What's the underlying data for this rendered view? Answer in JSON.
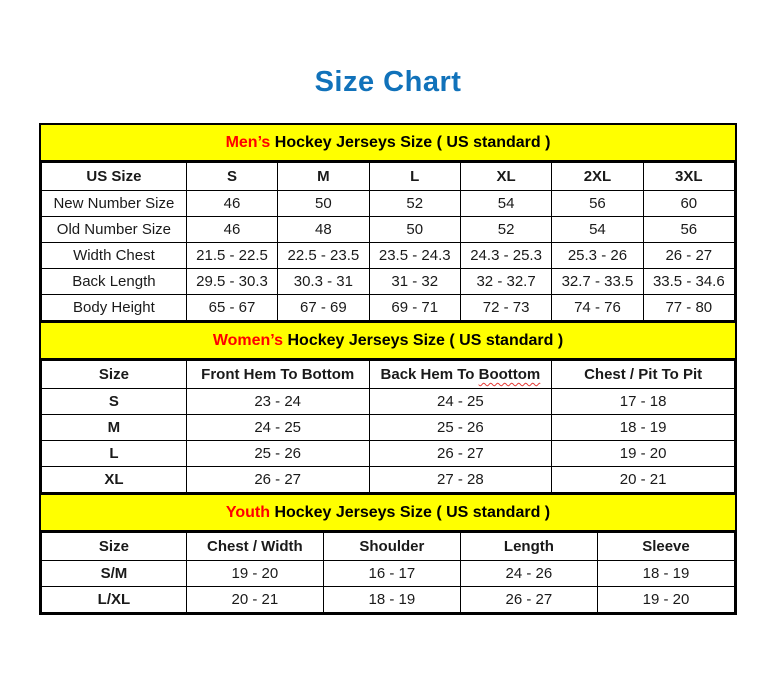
{
  "page_title": "Size Chart",
  "colors": {
    "title_blue": "#1172ba",
    "band_yellow": "#ffff00",
    "highlight_red": "#ff0000",
    "border_black": "#000000"
  },
  "chart_data": [
    {
      "type": "table",
      "id": "mens",
      "title_highlight": "Men’s",
      "title_rest": " Hockey Jerseys Size ( US standard )",
      "columns": [
        "US Size",
        "S",
        "M",
        "L",
        "XL",
        "2XL",
        "3XL"
      ],
      "rows": [
        [
          "New Number Size",
          "46",
          "50",
          "52",
          "54",
          "56",
          "60"
        ],
        [
          "Old Number Size",
          "46",
          "48",
          "50",
          "52",
          "54",
          "56"
        ],
        [
          "Width Chest",
          "21.5 - 22.5",
          "22.5 - 23.5",
          "23.5 - 24.3",
          "24.3 - 25.3",
          "25.3 - 26",
          "26 - 27"
        ],
        [
          "Back Length",
          "29.5 - 30.3",
          "30.3 - 31",
          "31 - 32",
          "32 - 32.7",
          "32.7 - 33.5",
          "33.5 - 34.6"
        ],
        [
          "Body Height",
          "65 - 67",
          "67 - 69",
          "69 - 71",
          "72 - 73",
          "74 - 76",
          "77 - 80"
        ]
      ],
      "row_label_bold": false
    },
    {
      "type": "table",
      "id": "womens",
      "title_highlight": "Women’s",
      "title_rest": " Hockey Jerseys Size ( US standard )",
      "columns": [
        "Size",
        "Front Hem To Bottom",
        "Back Hem To Boottom",
        "Chest / Pit To Pit"
      ],
      "misspelled_column": {
        "index": 2,
        "prefix": "Back Hem To ",
        "word": "Boottom"
      },
      "rows": [
        [
          "S",
          "23 - 24",
          "24 - 25",
          "17 - 18"
        ],
        [
          "M",
          "24 - 25",
          "25 - 26",
          "18 - 19"
        ],
        [
          "L",
          "25 - 26",
          "26 - 27",
          "19 - 20"
        ],
        [
          "XL",
          "26 - 27",
          "27 - 28",
          "20 - 21"
        ]
      ],
      "row_label_bold": true
    },
    {
      "type": "table",
      "id": "youth",
      "title_highlight": "Youth",
      "title_rest": " Hockey Jerseys Size ( US standard )",
      "columns": [
        "Size",
        "Chest / Width",
        "Shoulder",
        "Length",
        "Sleeve"
      ],
      "rows": [
        [
          "S/M",
          "19 - 20",
          "16 - 17",
          "24 - 26",
          "18 - 19"
        ],
        [
          "L/XL",
          "20 - 21",
          "18 - 19",
          "26 - 27",
          "19 - 20"
        ]
      ],
      "row_label_bold": true
    }
  ]
}
